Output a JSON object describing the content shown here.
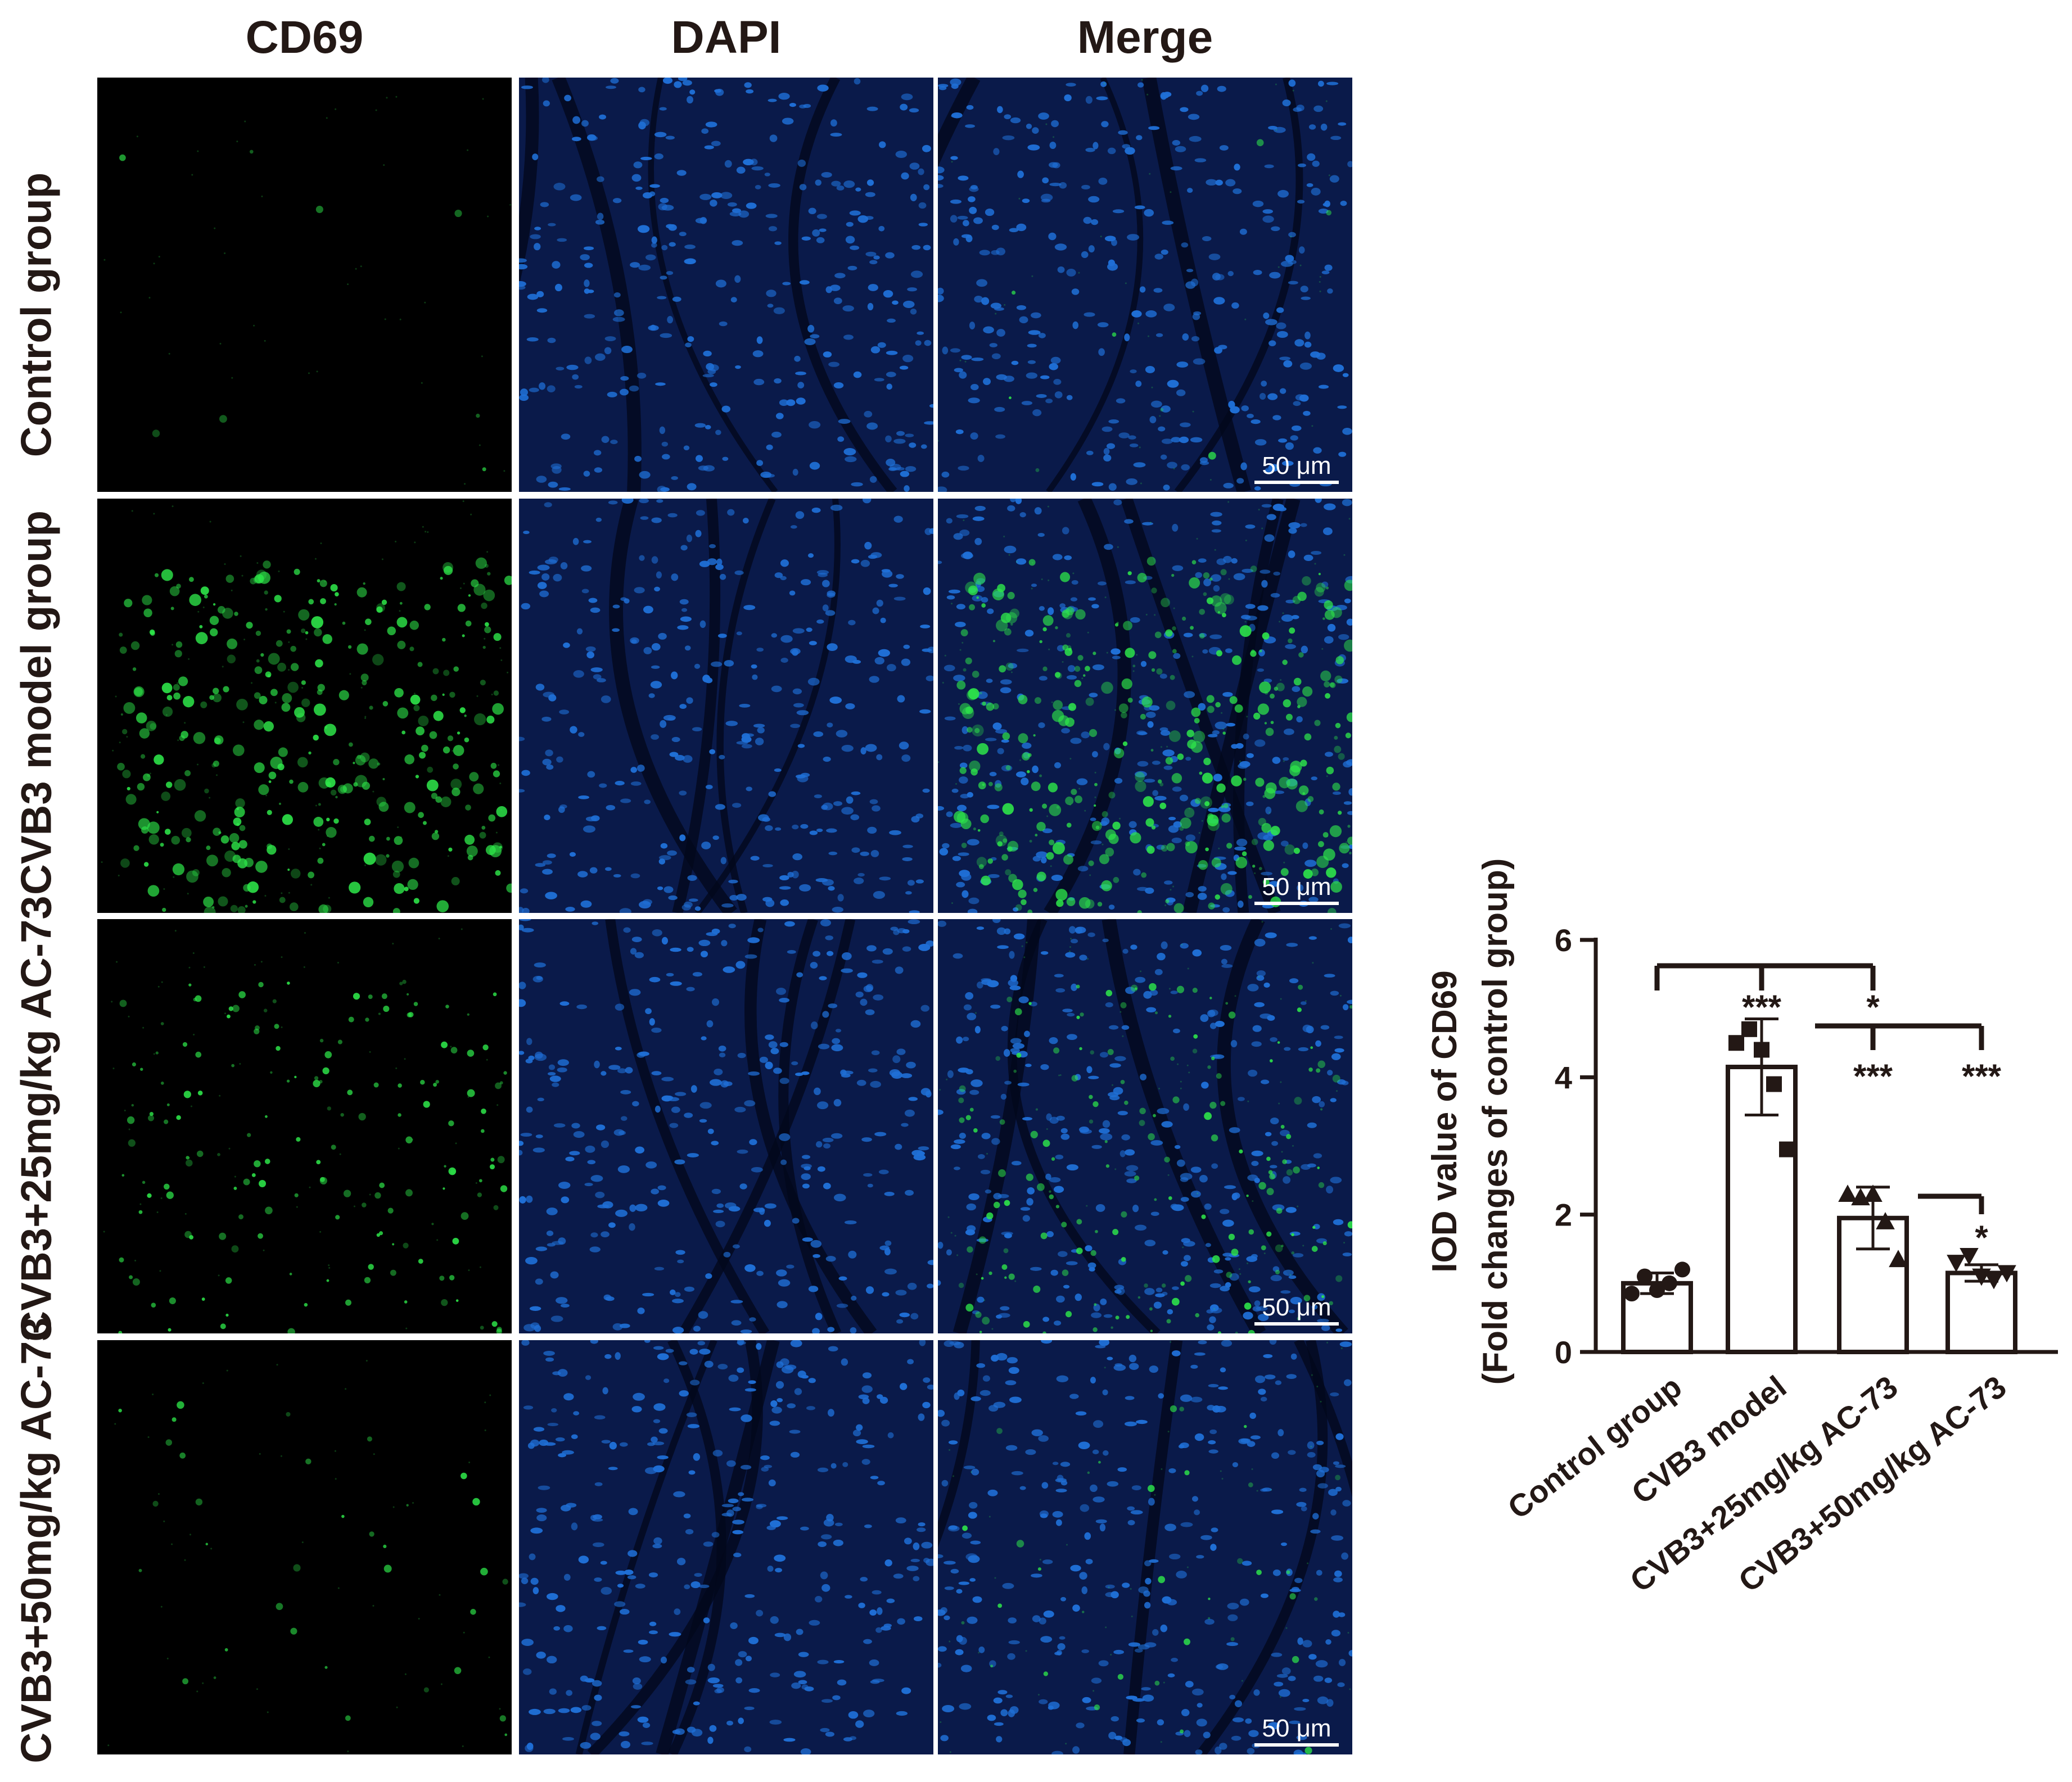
{
  "columns": [
    "CD69",
    "DAPI",
    "Merge"
  ],
  "rows": [
    {
      "label": "Control group",
      "green_level": 0.02
    },
    {
      "label": "CVB3 model group",
      "green_level": 0.85
    },
    {
      "label": "CVB3+25mg/kg AC-73",
      "green_level": 0.4
    },
    {
      "label": "CVB3+50mg/kg AC-73",
      "green_level": 0.08
    }
  ],
  "scale_bar": "50 μm",
  "colors": {
    "cd69": "#2ee84a",
    "dapi": "#1f6fd6",
    "tissue": "#0a1a4a",
    "bar": "#231815"
  },
  "chart_data": {
    "type": "bar",
    "categories": [
      "Control group",
      "CVB3 model",
      "CVB3+25mg/kg AC-73",
      "CVB3+50mg/kg AC-73"
    ],
    "values": [
      1.0,
      4.15,
      1.95,
      1.15
    ],
    "errors": [
      0.15,
      0.7,
      0.45,
      0.12
    ],
    "points": [
      [
        0.85,
        1.1,
        0.9,
        1.0,
        1.2
      ],
      [
        4.5,
        4.7,
        4.4,
        3.9,
        2.95
      ],
      [
        2.3,
        2.25,
        2.3,
        1.9,
        1.35
      ],
      [
        1.3,
        1.4,
        1.1,
        1.05,
        1.15
      ]
    ],
    "markers": [
      "circle",
      "square",
      "triangle-up",
      "triangle-down"
    ],
    "ylabel_line1": "IOD value of CD69",
    "ylabel_line2": "(Fold changes of control group)",
    "ylim": [
      0,
      6
    ],
    "yticks": [
      0,
      2,
      4,
      6
    ],
    "significance": [
      {
        "from": 0,
        "to": [
          1,
          3
        ],
        "label": "***",
        "label2": "*"
      },
      {
        "from": 1,
        "to": [
          2,
          3
        ],
        "labels": [
          "***",
          "***"
        ]
      },
      {
        "from": 2,
        "to": [
          3
        ],
        "label": "*"
      }
    ]
  }
}
